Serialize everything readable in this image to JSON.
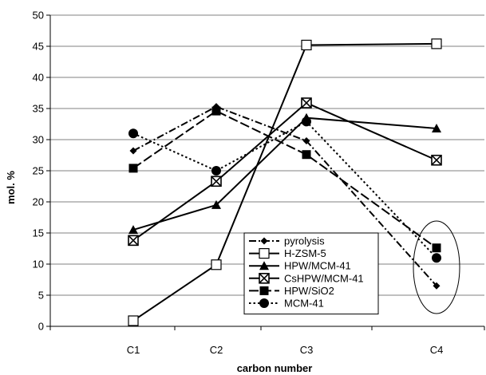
{
  "chart_data": {
    "type": "line",
    "xlabel": "carbon number",
    "ylabel": "mol. %",
    "ylim": [
      0,
      50
    ],
    "yticks": [
      0,
      5,
      10,
      15,
      20,
      25,
      30,
      35,
      40,
      45,
      50
    ],
    "categories": [
      "C1",
      "C2",
      "C3",
      "C4"
    ],
    "grid": "horizontal",
    "legend_position": "bottom-center",
    "colors": {
      "line": "#000000",
      "grid": "#808080",
      "background": "#ffffff"
    },
    "series": [
      {
        "name": "pyrolysis",
        "marker": "diamond",
        "dash": "dash-dot",
        "values": [
          28.2,
          35.3,
          29.8,
          6.5
        ]
      },
      {
        "name": "H-ZSM-5",
        "marker": "open-square",
        "dash": "solid",
        "values": [
          0.9,
          9.9,
          45.2,
          45.4
        ]
      },
      {
        "name": "HPW/MCM-41",
        "marker": "triangle",
        "dash": "solid",
        "values": [
          15.5,
          19.5,
          33.5,
          31.8
        ]
      },
      {
        "name": "CsHPW/MCM-41",
        "marker": "x-square",
        "dash": "solid",
        "values": [
          13.8,
          23.3,
          35.9,
          26.7
        ]
      },
      {
        "name": "HPW/SiO2",
        "marker": "filled-square",
        "dash": "long-dash",
        "values": [
          25.4,
          34.6,
          27.6,
          12.6
        ]
      },
      {
        "name": "MCM-41",
        "marker": "circle",
        "dash": "dotted",
        "values": [
          31.0,
          25.0,
          32.9,
          11.0
        ]
      }
    ]
  }
}
